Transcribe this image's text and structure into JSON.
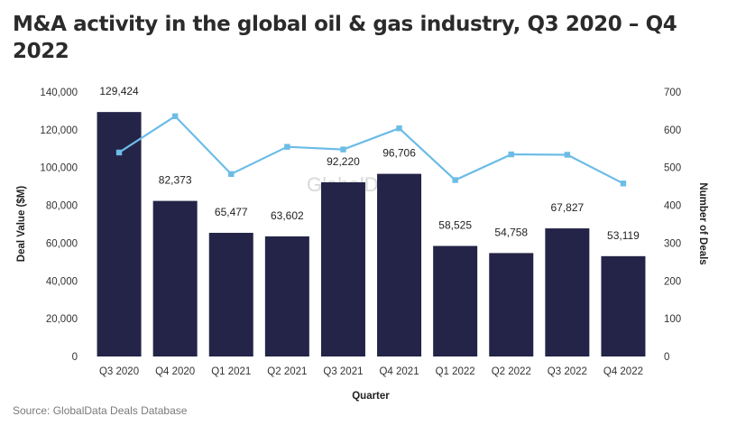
{
  "title": "M&A activity in the global oil & gas industry, Q3 2020 – Q4 2022",
  "source": "Source: GlobalData Deals Database",
  "watermark": "GlobalData.",
  "colors": {
    "bar": "#242448",
    "line": "#6cbce6"
  },
  "chart_data": {
    "type": "bar",
    "categories": [
      "Q3 2020",
      "Q4 2020",
      "Q1 2021",
      "Q2 2021",
      "Q3 2021",
      "Q4 2021",
      "Q1 2022",
      "Q2 2022",
      "Q3 2022",
      "Q4 2022"
    ],
    "series": [
      {
        "name": "Deal Value ($M)",
        "type": "bar",
        "axis": "left",
        "values": [
          129424,
          82373,
          65477,
          63602,
          92220,
          96706,
          58525,
          54758,
          67827,
          53119
        ],
        "labels": [
          "129,424",
          "82,373",
          "65,477",
          "63,602",
          "92,220",
          "96,706",
          "58,525",
          "54,758",
          "67,827",
          "53,119"
        ]
      },
      {
        "name": "Number of Deals",
        "type": "line",
        "axis": "right",
        "values": [
          540,
          636,
          483,
          555,
          548,
          604,
          467,
          535,
          534,
          458
        ]
      }
    ],
    "xlabel": "Quarter",
    "ylabel": "Deal Value ($M)",
    "y2label": "Number of Deals",
    "ylim": [
      0,
      140000
    ],
    "y2lim": [
      0,
      700
    ],
    "yticks": [
      "0",
      "20,000",
      "40,000",
      "60,000",
      "80,000",
      "100,000",
      "120,000",
      "140,000"
    ],
    "y2ticks": [
      "0",
      "100",
      "200",
      "300",
      "400",
      "500",
      "600",
      "700"
    ],
    "grid": false,
    "legend": "none"
  }
}
